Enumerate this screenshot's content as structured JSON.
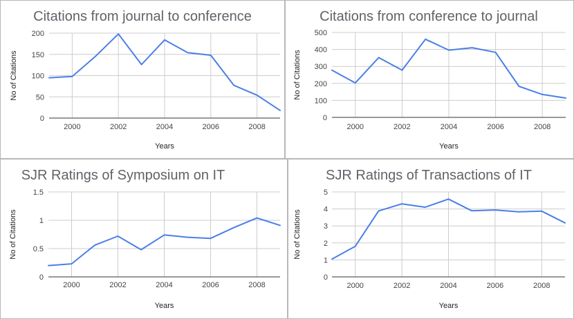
{
  "colors": {
    "line": "#4a7ee8",
    "grid": "#cccccc",
    "baseline": "#333333"
  },
  "chart_data": [
    {
      "type": "line",
      "title": "Citations from journal to conference",
      "xlabel": "Years",
      "ylabel": "No of Citations",
      "x": [
        1999,
        2000,
        2001,
        2002,
        2003,
        2004,
        2005,
        2006,
        2007,
        2008,
        2009
      ],
      "series": [
        {
          "values": [
            95,
            98,
            145,
            198,
            126,
            184,
            154,
            148,
            77,
            54,
            18
          ]
        }
      ],
      "xlim": [
        1999,
        2009
      ],
      "ylim": [
        0,
        200
      ],
      "yticks": [
        0,
        50,
        100,
        150,
        200
      ],
      "ytick_labels": [
        "0",
        "50",
        "100",
        "150",
        "200"
      ],
      "xticks": [
        2000,
        2002,
        2004,
        2006,
        2008
      ],
      "xtick_labels": [
        "2000",
        "2002",
        "2004",
        "2006",
        "2008"
      ],
      "grid": true,
      "legend": "none"
    },
    {
      "type": "line",
      "title": "Citations from conference to journal",
      "xlabel": "Years",
      "ylabel": "No of Citations",
      "x": [
        1999,
        2000,
        2001,
        2002,
        2003,
        2004,
        2005,
        2006,
        2007,
        2008,
        2009
      ],
      "series": [
        {
          "values": [
            278,
            203,
            352,
            278,
            460,
            396,
            410,
            383,
            183,
            135,
            114
          ]
        }
      ],
      "xlim": [
        1999,
        2009
      ],
      "ylim": [
        0,
        500
      ],
      "yticks": [
        0,
        100,
        200,
        300,
        400,
        500
      ],
      "ytick_labels": [
        "0",
        "100",
        "200",
        "300",
        "400",
        "500"
      ],
      "xticks": [
        2000,
        2002,
        2004,
        2006,
        2008
      ],
      "xtick_labels": [
        "2000",
        "2002",
        "2004",
        "2006",
        "2008"
      ],
      "grid": true,
      "legend": "none"
    },
    {
      "type": "line",
      "title": "SJR Ratings of Symposium on IT",
      "xlabel": "Years",
      "ylabel": "No of Citations",
      "x": [
        1999,
        2000,
        2001,
        2002,
        2003,
        2004,
        2005,
        2006,
        2007,
        2008,
        2009
      ],
      "series": [
        {
          "values": [
            0.2,
            0.23,
            0.56,
            0.72,
            0.48,
            0.74,
            0.7,
            0.68,
            0.87,
            1.04,
            0.91
          ]
        }
      ],
      "xlim": [
        1999,
        2009
      ],
      "ylim": [
        0,
        1.5
      ],
      "yticks": [
        0,
        0.5,
        1,
        1.5
      ],
      "ytick_labels": [
        "0",
        "0.5",
        "1",
        "1.5"
      ],
      "xticks": [
        2000,
        2002,
        2004,
        2006,
        2008
      ],
      "xtick_labels": [
        "2000",
        "2002",
        "2004",
        "2006",
        "2008"
      ],
      "grid": true,
      "legend": "none"
    },
    {
      "type": "line",
      "title": "SJR Ratings of Transactions of IT",
      "xlabel": "Years",
      "ylabel": "No of Citations",
      "x": [
        1999,
        2000,
        2001,
        2002,
        2003,
        2004,
        2005,
        2006,
        2007,
        2008,
        2009
      ],
      "series": [
        {
          "values": [
            1.05,
            1.8,
            3.88,
            4.3,
            4.1,
            4.58,
            3.89,
            3.94,
            3.83,
            3.87,
            3.18
          ]
        }
      ],
      "xlim": [
        1999,
        2009
      ],
      "ylim": [
        0,
        5
      ],
      "yticks": [
        0,
        1,
        2,
        3,
        4,
        5
      ],
      "ytick_labels": [
        "0",
        "1",
        "2",
        "3",
        "4",
        "5"
      ],
      "xticks": [
        2000,
        2002,
        2004,
        2006,
        2008
      ],
      "xtick_labels": [
        "2000",
        "2002",
        "2004",
        "2006",
        "2008"
      ],
      "grid": true,
      "legend": "none"
    }
  ]
}
